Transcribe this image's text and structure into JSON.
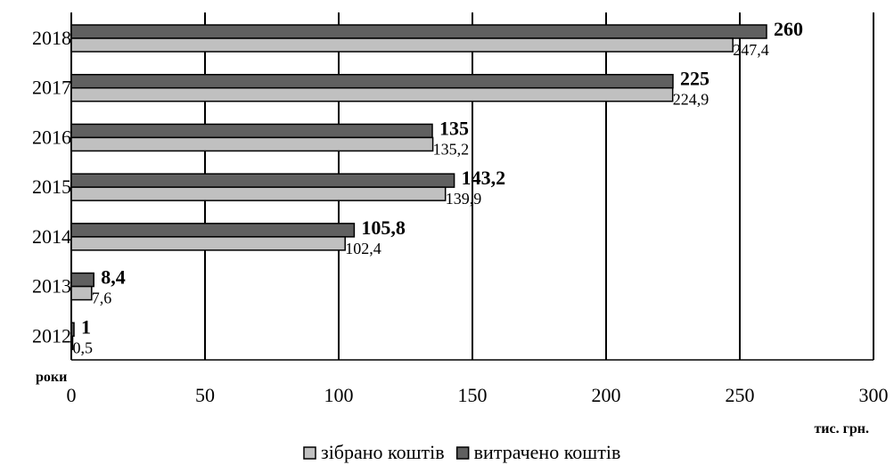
{
  "chart_data": {
    "type": "bar",
    "orientation": "horizontal",
    "categories": [
      "2018",
      "2017",
      "2016",
      "2015",
      "2014",
      "2013",
      "2012"
    ],
    "series": [
      {
        "name": "витрачено коштів",
        "values": [
          260,
          225,
          135,
          143.2,
          105.8,
          8.4,
          1
        ],
        "labels": [
          "260",
          "225",
          "135",
          "143,2",
          "105,8",
          "8,4",
          "1"
        ],
        "color": "#606060"
      },
      {
        "name": "зібрано коштів",
        "values": [
          247.4,
          224.9,
          135.2,
          139.9,
          102.4,
          7.6,
          0.5
        ],
        "labels": [
          "247,4",
          "224,9",
          "135,2",
          "139,9",
          "102,4",
          "7,6",
          "0,5"
        ],
        "color": "#c0c0c0"
      }
    ],
    "xlim": [
      0,
      300
    ],
    "x_ticks": [
      "0",
      "50",
      "100",
      "150",
      "200",
      "250",
      "300"
    ],
    "xlabel": "тис. грн.",
    "ylabel": "роки",
    "grid": "vertical",
    "legend": "bottom"
  }
}
